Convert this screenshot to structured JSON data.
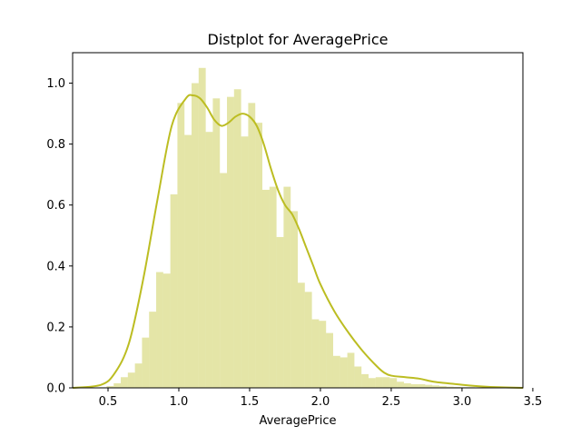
{
  "chart_data": {
    "type": "bar",
    "title": "Distplot for AveragePrice",
    "xlabel": "AveragePrice",
    "ylabel": "",
    "xlim": [
      0.25,
      3.43
    ],
    "ylim": [
      0,
      1.1
    ],
    "xticks": [
      0.5,
      1.0,
      1.5,
      2.0,
      2.5,
      3.0,
      3.5
    ],
    "xtick_labels": [
      "0.5",
      "1.0",
      "1.5",
      "2.0",
      "2.5",
      "3.0",
      "3.5"
    ],
    "yticks": [
      0.0,
      0.2,
      0.4,
      0.6,
      0.8,
      1.0
    ],
    "ytick_labels": [
      "0.0",
      "0.2",
      "0.4",
      "0.6",
      "0.8",
      "1.0"
    ],
    "grid": false,
    "colors": {
      "bar": "#bcbd22",
      "bar_opacity": 0.4,
      "kde": "#bcbd22"
    },
    "histogram": {
      "bin_start": 0.44,
      "bin_width": 0.05,
      "values": [
        0.002,
        0.006,
        0.015,
        0.035,
        0.05,
        0.08,
        0.165,
        0.25,
        0.38,
        0.375,
        0.635,
        0.935,
        0.83,
        1.0,
        1.05,
        0.84,
        0.95,
        0.705,
        0.955,
        0.98,
        0.825,
        0.935,
        0.87,
        0.65,
        0.66,
        0.495,
        0.66,
        0.58,
        0.345,
        0.315,
        0.225,
        0.22,
        0.18,
        0.105,
        0.1,
        0.115,
        0.07,
        0.045,
        0.032,
        0.035,
        0.035,
        0.032,
        0.02,
        0.015,
        0.012,
        0.012,
        0.01,
        0.008,
        0.006,
        0.004,
        0.003,
        0.002,
        0.002,
        0.001,
        0.001
      ]
    },
    "kde": {
      "x": [
        0.25,
        0.45,
        0.55,
        0.65,
        0.75,
        0.85,
        0.95,
        1.05,
        1.1,
        1.15,
        1.2,
        1.25,
        1.3,
        1.35,
        1.4,
        1.45,
        1.5,
        1.55,
        1.6,
        1.65,
        1.7,
        1.75,
        1.8,
        1.85,
        1.9,
        1.95,
        2.0,
        2.1,
        2.2,
        2.3,
        2.4,
        2.45,
        2.5,
        2.6,
        2.7,
        2.8,
        2.9,
        3.0,
        3.1,
        3.2,
        3.43
      ],
      "y": [
        0.0,
        0.01,
        0.05,
        0.15,
        0.36,
        0.62,
        0.86,
        0.95,
        0.96,
        0.95,
        0.92,
        0.88,
        0.86,
        0.87,
        0.89,
        0.9,
        0.89,
        0.86,
        0.8,
        0.72,
        0.65,
        0.6,
        0.57,
        0.52,
        0.46,
        0.4,
        0.34,
        0.25,
        0.18,
        0.12,
        0.07,
        0.05,
        0.04,
        0.035,
        0.03,
        0.02,
        0.015,
        0.01,
        0.006,
        0.003,
        0.0
      ]
    }
  }
}
